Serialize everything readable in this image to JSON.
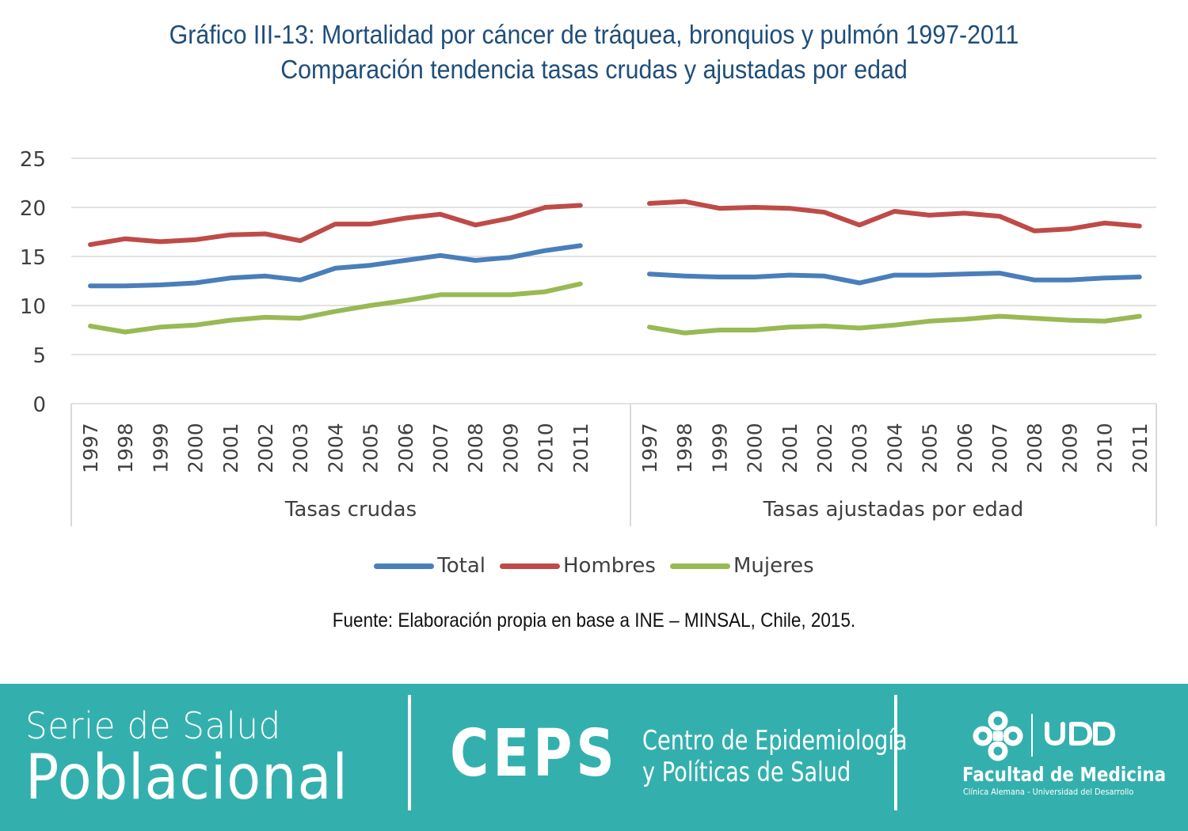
{
  "title": {
    "line1": "Gráfico III-13: Mortalidad por cáncer de tráquea, bronquios y pulmón 1997-2011",
    "line2": "Comparación tendencia tasas crudas y ajustadas por edad"
  },
  "source": "Fuente: Elaboración propia en base a INE – MINSAL, Chile, 2015.",
  "chart_data": {
    "type": "line",
    "title": "Gráfico III-13: Mortalidad por cáncer de tráquea, bronquios y pulmón 1997-2011",
    "subtitle": "Comparación tendencia tasas crudas y ajustadas por edad",
    "ylim": [
      0,
      25
    ],
    "yticks": [
      0,
      5,
      10,
      15,
      20,
      25
    ],
    "grid": true,
    "legend_position": "bottom",
    "groups": [
      {
        "label": "Tasas crudas",
        "categories": [
          "1997",
          "1998",
          "1999",
          "2000",
          "2001",
          "2002",
          "2003",
          "2004",
          "2005",
          "2006",
          "2007",
          "2008",
          "2009",
          "2010",
          "2011"
        ],
        "series": [
          {
            "name": "Total",
            "color": "#4a7ebb",
            "values": [
              12.0,
              12.0,
              12.1,
              12.3,
              12.8,
              13.0,
              12.6,
              13.8,
              14.1,
              14.6,
              15.1,
              14.6,
              14.9,
              15.6,
              16.1
            ]
          },
          {
            "name": "Hombres",
            "color": "#be4b48",
            "values": [
              16.2,
              16.8,
              16.5,
              16.7,
              17.2,
              17.3,
              16.6,
              18.3,
              18.3,
              18.9,
              19.3,
              18.2,
              18.9,
              20.0,
              20.2
            ]
          },
          {
            "name": "Mujeres",
            "color": "#98b954",
            "values": [
              7.9,
              7.3,
              7.8,
              8.0,
              8.5,
              8.8,
              8.7,
              9.4,
              10.0,
              10.5,
              11.1,
              11.1,
              11.1,
              11.4,
              12.2
            ]
          }
        ]
      },
      {
        "label": "Tasas ajustadas por edad",
        "categories": [
          "1997",
          "1998",
          "1999",
          "2000",
          "2001",
          "2002",
          "2003",
          "2004",
          "2005",
          "2006",
          "2007",
          "2008",
          "2009",
          "2010",
          "2011"
        ],
        "series": [
          {
            "name": "Total",
            "color": "#4a7ebb",
            "values": [
              13.2,
              13.0,
              12.9,
              12.9,
              13.1,
              13.0,
              12.3,
              13.1,
              13.1,
              13.2,
              13.3,
              12.6,
              12.6,
              12.8,
              12.9
            ]
          },
          {
            "name": "Hombres",
            "color": "#be4b48",
            "values": [
              20.4,
              20.6,
              19.9,
              20.0,
              19.9,
              19.5,
              18.2,
              19.6,
              19.2,
              19.4,
              19.1,
              17.6,
              17.8,
              18.4,
              18.1
            ]
          },
          {
            "name": "Mujeres",
            "color": "#98b954",
            "values": [
              7.8,
              7.2,
              7.5,
              7.5,
              7.8,
              7.9,
              7.7,
              8.0,
              8.4,
              8.6,
              8.9,
              8.7,
              8.5,
              8.4,
              8.9
            ]
          }
        ]
      }
    ]
  },
  "legend": [
    {
      "label": "Total",
      "color": "#4a7ebb"
    },
    {
      "label": "Hombres",
      "color": "#be4b48"
    },
    {
      "label": "Mujeres",
      "color": "#98b954"
    }
  ],
  "footer": {
    "background": "#33b0ad",
    "serie_line1": "Serie de Salud",
    "serie_line2": "Poblacional",
    "ceps_abbr": "CEPS",
    "ceps_name_line1": "Centro de Epidemiología",
    "ceps_name_line2": "y Políticas de Salud",
    "logo_wordmark": "UDD",
    "faculty": "Facultad de Medicina",
    "faculty_sub": "Clínica Alemana - Universidad del Desarrollo"
  }
}
